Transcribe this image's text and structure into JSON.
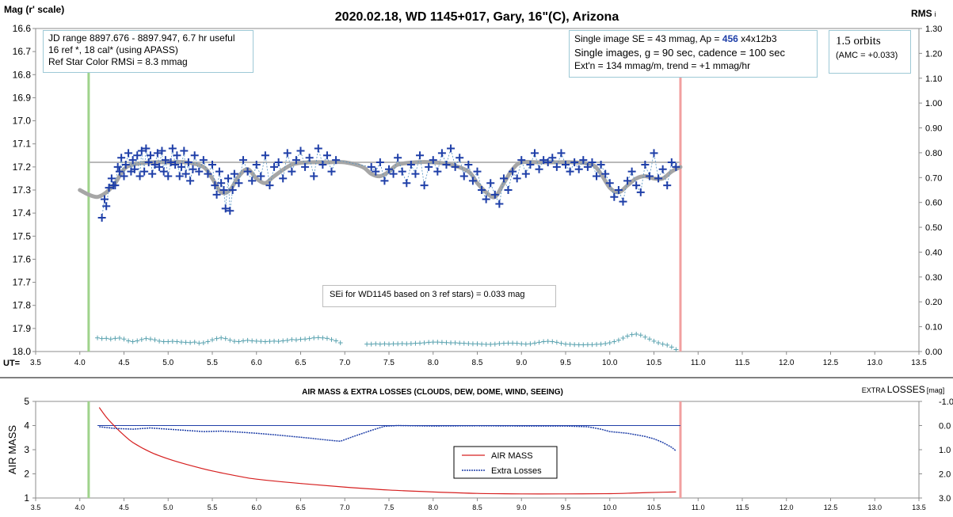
{
  "chart_data": [
    {
      "type": "scatter",
      "title": "2020.02.18, WD 1145+017, Gary, 16\"(C), Arizona",
      "ylabel": "Mag (r' scale)",
      "y2label": "RMS",
      "y2label_sub": "i",
      "xlabel": "UT=",
      "xlim": [
        3.5,
        13.5
      ],
      "ylim": [
        16.6,
        18.0
      ],
      "y2lim": [
        0.0,
        1.3
      ],
      "y_inverted": true,
      "x_ticks": [
        "3.5",
        "4.0",
        "4.5",
        "5.0",
        "5.5",
        "6.0",
        "6.5",
        "7.0",
        "7.5",
        "8.0",
        "8.5",
        "9.0",
        "9.5",
        "10.0",
        "10.5",
        "11.0",
        "11.5",
        "12.0",
        "12.5",
        "13.0",
        "13.5"
      ],
      "y_ticks": [
        "16.6",
        "16.7",
        "16.8",
        "16.9",
        "17.0",
        "17.1",
        "17.2",
        "17.3",
        "17.4",
        "17.5",
        "17.6",
        "17.7",
        "17.8",
        "17.9",
        "18.0"
      ],
      "y2_ticks": [
        "1.30",
        "1.20",
        "1.10",
        "1.00",
        "0.90",
        "0.80",
        "0.70",
        "0.60",
        "0.50",
        "0.40",
        "0.30",
        "0.20",
        "0.10",
        "0.00"
      ],
      "start_marker_ut": 4.1,
      "end_marker_ut": 10.8,
      "reference_level_mag": 17.18,
      "info_box_1": [
        "JD range 8897.676 - 8897.947, 6.7 hr useful",
        "16 ref *, 18 cal* (using APASS)",
        "Ref Star Color RMSi = 8.3 mmag"
      ],
      "info_box_2": {
        "line1_prefix": "Single image SE = 43 mmag, Ap = ",
        "line1_highlight": "456",
        "line1_suffix": " x4x12b3",
        "line2": "Single images, g = 90 sec, cadence = 100 sec",
        "line3": "Ext'n = 134 mmag/m, trend = +1 mmag/hr",
        "highlight_color": "#1f3fa8"
      },
      "info_box_3": [
        "1.5 orbits",
        "(AMC = +0.033)"
      ],
      "annotation": "SEi for WD1145 based on 3 ref stars) = 0.033 mag",
      "model_curve": {
        "x": [
          4.0,
          4.1,
          4.2,
          4.3,
          4.4,
          4.5,
          4.6,
          4.8,
          5.0,
          5.2,
          5.4,
          5.5,
          5.6,
          5.7,
          5.8,
          5.9,
          6.0,
          6.1,
          6.2,
          6.4,
          6.6,
          6.8,
          7.0,
          7.2,
          7.3,
          7.4,
          7.5,
          7.6,
          7.8,
          8.0,
          8.2,
          8.4,
          8.5,
          8.6,
          8.7,
          8.8,
          8.9,
          9.0,
          9.2,
          9.4,
          9.6,
          9.8,
          9.9,
          10.0,
          10.1,
          10.2,
          10.3,
          10.4,
          10.5,
          10.6,
          10.7,
          10.8
        ],
        "y": [
          17.3,
          17.32,
          17.33,
          17.31,
          17.27,
          17.21,
          17.19,
          17.18,
          17.18,
          17.18,
          17.2,
          17.25,
          17.31,
          17.3,
          17.24,
          17.21,
          17.25,
          17.27,
          17.24,
          17.19,
          17.18,
          17.18,
          17.18,
          17.2,
          17.23,
          17.24,
          17.22,
          17.19,
          17.18,
          17.18,
          17.19,
          17.22,
          17.27,
          17.31,
          17.33,
          17.27,
          17.21,
          17.18,
          17.18,
          17.18,
          17.18,
          17.19,
          17.23,
          17.29,
          17.31,
          17.28,
          17.25,
          17.24,
          17.25,
          17.25,
          17.22,
          17.2
        ]
      },
      "series": [
        {
          "name": "WD 1145+017",
          "color": "#1f3fa8",
          "x": [
            4.25,
            4.28,
            4.3,
            4.33,
            4.36,
            4.38,
            4.4,
            4.43,
            4.45,
            4.47,
            4.5,
            4.52,
            4.55,
            4.58,
            4.6,
            4.62,
            4.65,
            4.68,
            4.7,
            4.73,
            4.75,
            4.78,
            4.8,
            4.82,
            4.85,
            4.88,
            4.9,
            4.93,
            4.95,
            4.97,
            5.0,
            5.03,
            5.05,
            5.08,
            5.1,
            5.13,
            5.15,
            5.18,
            5.2,
            5.23,
            5.25,
            5.28,
            5.3,
            5.35,
            5.4,
            5.45,
            5.5,
            5.53,
            5.55,
            5.58,
            5.6,
            5.63,
            5.65,
            5.68,
            5.7,
            5.73,
            5.75,
            5.8,
            5.85,
            5.9,
            5.95,
            6.0,
            6.05,
            6.1,
            6.15,
            6.2,
            6.25,
            6.3,
            6.35,
            6.4,
            6.45,
            6.5,
            6.55,
            6.6,
            6.65,
            6.7,
            6.75,
            6.8,
            6.85,
            6.9,
            7.3,
            7.35,
            7.4,
            7.45,
            7.5,
            7.55,
            7.6,
            7.65,
            7.7,
            7.75,
            7.8,
            7.85,
            7.9,
            7.95,
            8.0,
            8.05,
            8.1,
            8.15,
            8.2,
            8.25,
            8.3,
            8.35,
            8.4,
            8.45,
            8.5,
            8.55,
            8.6,
            8.65,
            8.7,
            8.75,
            8.8,
            8.85,
            8.9,
            8.95,
            9.0,
            9.05,
            9.1,
            9.15,
            9.2,
            9.25,
            9.3,
            9.35,
            9.4,
            9.45,
            9.5,
            9.55,
            9.6,
            9.65,
            9.7,
            9.75,
            9.8,
            9.85,
            9.9,
            9.95,
            10.0,
            10.05,
            10.1,
            10.15,
            10.2,
            10.25,
            10.3,
            10.35,
            10.4,
            10.45,
            10.5,
            10.55,
            10.6,
            10.65,
            10.7,
            10.75
          ],
          "y": [
            17.42,
            17.34,
            17.37,
            17.29,
            17.25,
            17.28,
            17.28,
            17.2,
            17.22,
            17.16,
            17.24,
            17.19,
            17.14,
            17.22,
            17.17,
            17.21,
            17.15,
            17.24,
            17.13,
            17.22,
            17.12,
            17.18,
            17.15,
            17.23,
            17.19,
            17.14,
            17.2,
            17.13,
            17.22,
            17.17,
            17.24,
            17.18,
            17.12,
            17.19,
            17.15,
            17.24,
            17.2,
            17.13,
            17.23,
            17.18,
            17.26,
            17.21,
            17.15,
            17.22,
            17.17,
            17.23,
            17.19,
            17.28,
            17.32,
            17.22,
            17.27,
            17.3,
            17.38,
            17.25,
            17.39,
            17.3,
            17.23,
            17.27,
            17.17,
            17.22,
            17.26,
            17.19,
            17.24,
            17.15,
            17.28,
            17.2,
            17.18,
            17.25,
            17.14,
            17.22,
            17.17,
            17.13,
            17.2,
            17.16,
            17.24,
            17.12,
            17.19,
            17.15,
            17.22,
            17.17,
            17.2,
            17.22,
            17.18,
            17.26,
            17.21,
            17.23,
            17.16,
            17.22,
            17.27,
            17.19,
            17.23,
            17.15,
            17.28,
            17.2,
            17.17,
            17.22,
            17.14,
            17.19,
            17.12,
            17.2,
            17.16,
            17.24,
            17.19,
            17.26,
            17.22,
            17.3,
            17.34,
            17.27,
            17.32,
            17.36,
            17.25,
            17.3,
            17.22,
            17.25,
            17.17,
            17.23,
            17.19,
            17.14,
            17.21,
            17.17,
            17.18,
            17.16,
            17.2,
            17.14,
            17.19,
            17.22,
            17.18,
            17.21,
            17.17,
            17.2,
            17.18,
            17.24,
            17.19,
            17.23,
            17.27,
            17.33,
            17.3,
            17.35,
            17.26,
            17.22,
            17.28,
            17.31,
            17.19,
            17.24,
            17.14,
            17.25,
            17.21,
            17.28,
            17.18,
            17.2
          ]
        },
        {
          "name": "RMSi",
          "color": "#5ba3b0",
          "x": [
            4.2,
            4.25,
            4.3,
            4.35,
            4.4,
            4.45,
            4.5,
            4.55,
            4.6,
            4.65,
            4.7,
            4.75,
            4.8,
            4.85,
            4.9,
            4.95,
            5.0,
            5.05,
            5.1,
            5.15,
            5.2,
            5.25,
            5.3,
            5.35,
            5.4,
            5.45,
            5.5,
            5.55,
            5.6,
            5.65,
            5.7,
            5.75,
            5.8,
            5.85,
            5.9,
            5.95,
            6.0,
            6.05,
            6.1,
            6.15,
            6.2,
            6.25,
            6.3,
            6.35,
            6.4,
            6.45,
            6.5,
            6.55,
            6.6,
            6.65,
            6.7,
            6.75,
            6.8,
            6.85,
            6.9,
            6.95,
            7.25,
            7.3,
            7.35,
            7.4,
            7.45,
            7.5,
            7.55,
            7.6,
            7.65,
            7.7,
            7.75,
            7.8,
            7.85,
            7.9,
            7.95,
            8.0,
            8.05,
            8.1,
            8.15,
            8.2,
            8.25,
            8.3,
            8.35,
            8.4,
            8.45,
            8.5,
            8.55,
            8.6,
            8.65,
            8.7,
            8.75,
            8.8,
            8.85,
            8.9,
            8.95,
            9.0,
            9.05,
            9.1,
            9.15,
            9.2,
            9.25,
            9.3,
            9.35,
            9.4,
            9.45,
            9.5,
            9.55,
            9.6,
            9.65,
            9.7,
            9.75,
            9.8,
            9.85,
            9.9,
            9.95,
            10.0,
            10.05,
            10.1,
            10.15,
            10.2,
            10.25,
            10.3,
            10.35,
            10.4,
            10.45,
            10.5,
            10.55,
            10.6,
            10.65,
            10.7,
            10.75
          ],
          "y": [
            0.055,
            0.052,
            0.053,
            0.05,
            0.053,
            0.054,
            0.05,
            0.043,
            0.04,
            0.043,
            0.048,
            0.052,
            0.05,
            0.047,
            0.042,
            0.04,
            0.04,
            0.041,
            0.04,
            0.038,
            0.037,
            0.036,
            0.038,
            0.034,
            0.035,
            0.04,
            0.047,
            0.052,
            0.055,
            0.052,
            0.046,
            0.041,
            0.04,
            0.043,
            0.045,
            0.043,
            0.042,
            0.041,
            0.04,
            0.041,
            0.042,
            0.041,
            0.043,
            0.045,
            0.048,
            0.047,
            0.049,
            0.05,
            0.052,
            0.055,
            0.056,
            0.055,
            0.053,
            0.048,
            0.043,
            0.035,
            0.03,
            0.03,
            0.031,
            0.03,
            0.031,
            0.03,
            0.031,
            0.031,
            0.032,
            0.031,
            0.032,
            0.033,
            0.034,
            0.035,
            0.037,
            0.038,
            0.038,
            0.037,
            0.036,
            0.035,
            0.035,
            0.034,
            0.033,
            0.032,
            0.031,
            0.031,
            0.03,
            0.029,
            0.029,
            0.03,
            0.032,
            0.033,
            0.034,
            0.034,
            0.033,
            0.031,
            0.03,
            0.031,
            0.034,
            0.037,
            0.04,
            0.041,
            0.04,
            0.037,
            0.033,
            0.03,
            0.029,
            0.028,
            0.027,
            0.027,
            0.028,
            0.028,
            0.029,
            0.03,
            0.032,
            0.035,
            0.04,
            0.046,
            0.054,
            0.062,
            0.068,
            0.07,
            0.066,
            0.058,
            0.05,
            0.042,
            0.035,
            0.03,
            0.026,
            0.018,
            0.008
          ]
        }
      ]
    },
    {
      "type": "line",
      "title": "AIR MASS & EXTRA LOSSES (CLOUDS, DEW, DOME, WIND, SEEING)",
      "ylabel": "AIR MASS",
      "y2label_small": "EXTRA",
      "y2label_main": "LOSSES",
      "y2label_unit": "[mag]",
      "xlim": [
        3.5,
        13.5
      ],
      "ylim": [
        1,
        5
      ],
      "y2lim": [
        -1.0,
        3.0
      ],
      "y2_inverted": true,
      "x_ticks": [
        "3.5",
        "4.0",
        "4.5",
        "5.0",
        "5.5",
        "6.0",
        "6.5",
        "7.0",
        "7.5",
        "8.0",
        "8.5",
        "9.0",
        "9.5",
        "10.0",
        "10.5",
        "11.0",
        "11.5",
        "12.0",
        "12.5",
        "13.0",
        "13.5"
      ],
      "y_ticks": [
        "1",
        "2",
        "3",
        "4",
        "5"
      ],
      "y2_ticks": [
        "-1.0",
        "0.0",
        "1.0",
        "2.0",
        "3.0"
      ],
      "reference_level_losses": 0.0,
      "start_marker_ut": 4.1,
      "end_marker_ut": 10.8,
      "legend_position": "center",
      "series": [
        {
          "name": "AIR MASS",
          "color": "#d62020",
          "x": [
            4.22,
            4.3,
            4.4,
            4.5,
            4.6,
            4.8,
            5.0,
            5.2,
            5.5,
            5.8,
            6.0,
            6.5,
            7.0,
            7.5,
            8.0,
            8.5,
            9.0,
            9.5,
            10.0,
            10.3,
            10.6,
            10.75
          ],
          "y": [
            4.75,
            4.35,
            3.95,
            3.6,
            3.3,
            2.9,
            2.62,
            2.4,
            2.12,
            1.9,
            1.78,
            1.6,
            1.45,
            1.33,
            1.25,
            1.19,
            1.17,
            1.17,
            1.18,
            1.21,
            1.24,
            1.25
          ]
        },
        {
          "name": "Extra Losses",
          "color": "#1f3fa8",
          "x": [
            4.22,
            4.4,
            4.6,
            4.8,
            5.0,
            5.2,
            5.4,
            5.6,
            5.8,
            6.0,
            6.2,
            6.4,
            6.6,
            6.8,
            6.95,
            7.1,
            7.3,
            7.45,
            7.6,
            8.0,
            8.5,
            9.0,
            9.5,
            9.75,
            9.9,
            10.0,
            10.2,
            10.4,
            10.5,
            10.6,
            10.7,
            10.75
          ],
          "y": [
            0.05,
            0.12,
            0.15,
            0.1,
            0.15,
            0.2,
            0.25,
            0.23,
            0.27,
            0.32,
            0.38,
            0.45,
            0.52,
            0.6,
            0.65,
            0.45,
            0.2,
            0.03,
            0.0,
            0.02,
            0.01,
            0.02,
            0.02,
            0.05,
            0.15,
            0.25,
            0.32,
            0.45,
            0.55,
            0.7,
            0.9,
            1.05
          ]
        }
      ]
    }
  ]
}
